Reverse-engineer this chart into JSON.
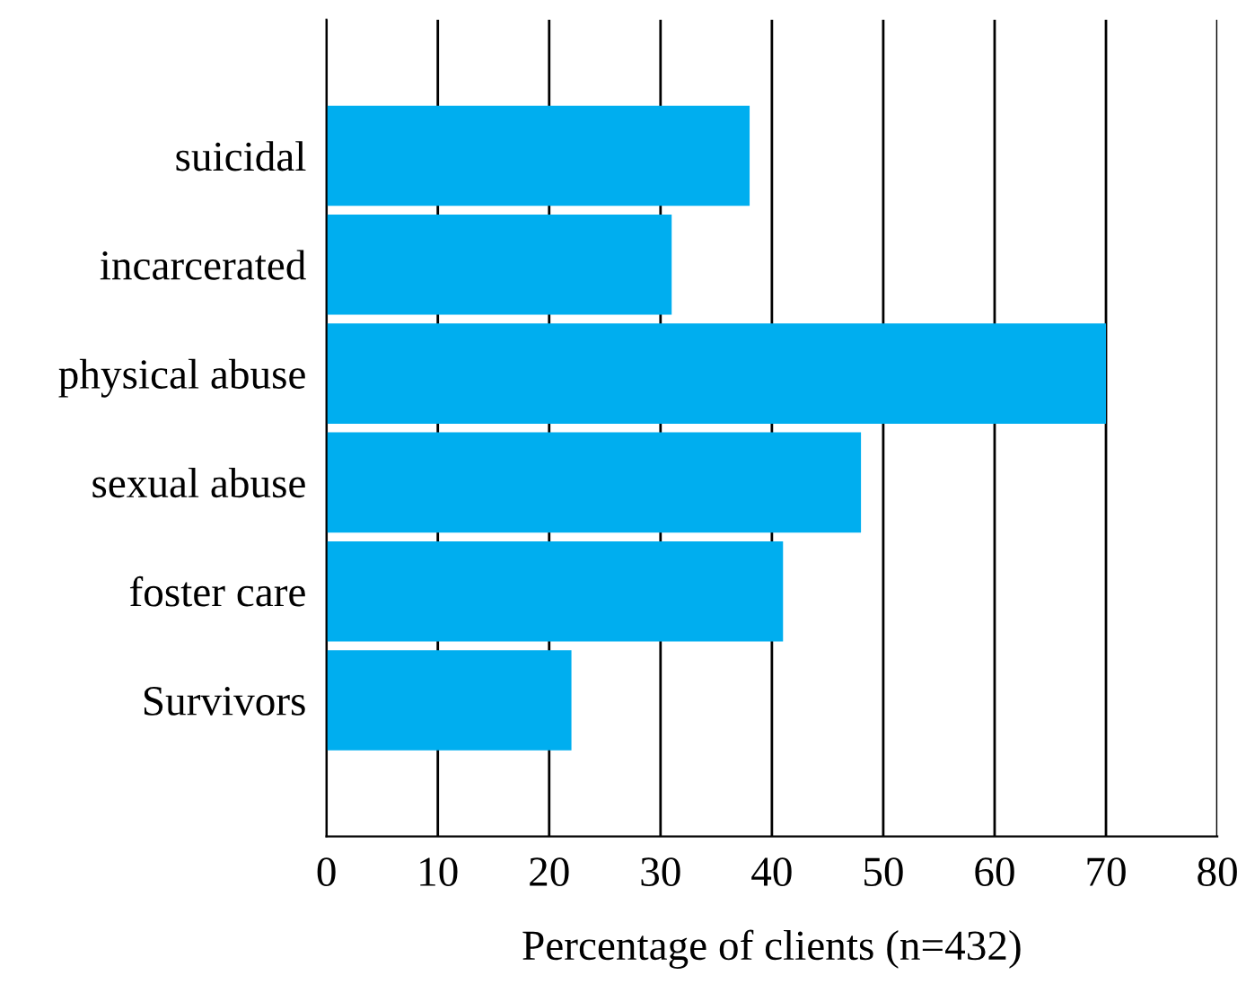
{
  "chart_data": {
    "type": "bar",
    "orientation": "horizontal",
    "xlabel": "Percentage of clients (n=432)",
    "categories": [
      "suicidal",
      "incarcerated",
      "physical abuse",
      "sexual abuse",
      "foster care",
      "Survivors"
    ],
    "values": [
      38,
      31,
      70,
      48,
      41,
      22
    ],
    "color": "#00aeef",
    "xlim": [
      0,
      80
    ],
    "xticks": [
      0,
      10,
      20,
      30,
      40,
      50,
      60,
      70,
      80
    ],
    "grid": "x",
    "legend": false
  }
}
